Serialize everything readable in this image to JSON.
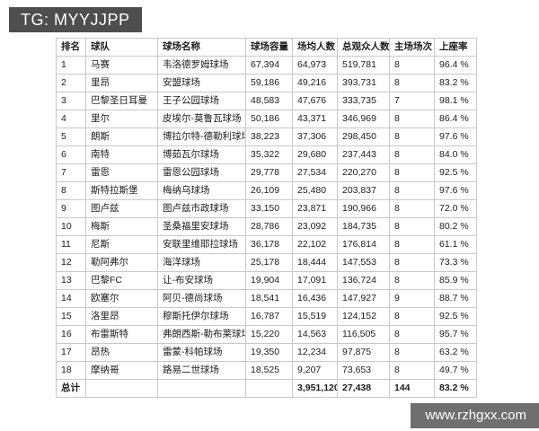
{
  "badges": {
    "tg": "TG: MYYJJPP",
    "watermark": "www.rzhgxx.com"
  },
  "colors": {
    "tg_badge_bg": "#4e4e4e",
    "watermark_bg": "#6f6f6f",
    "table_border": "#c9c9c9",
    "text": "#1c1c1c"
  },
  "table": {
    "headers": [
      "排名",
      "球队",
      "球场名称",
      "球场容量",
      "场均人数",
      "总观众人数",
      "主场场次",
      "上座率"
    ],
    "rows": [
      [
        "1",
        "马赛",
        "韦洛德罗姆球场",
        "67,394",
        "64,973",
        "519,781",
        "8",
        "96.4 %"
      ],
      [
        "2",
        "里昂",
        "安盟球场",
        "59,186",
        "49,216",
        "393,731",
        "8",
        "83.2 %"
      ],
      [
        "3",
        "巴黎圣日耳曼",
        "王子公园球场",
        "48,583",
        "47,676",
        "333,735",
        "7",
        "98.1 %"
      ],
      [
        "4",
        "里尔",
        "皮埃尔-莫鲁瓦球场",
        "50,186",
        "43,371",
        "346,969",
        "8",
        "86.4 %"
      ],
      [
        "5",
        "朗斯",
        "博拉尔特-德勒利球场",
        "38,223",
        "37,306",
        "298,450",
        "8",
        "97.6 %"
      ],
      [
        "6",
        "南特",
        "博茹瓦尔球场",
        "35,322",
        "29,680",
        "237,443",
        "8",
        "84.0 %"
      ],
      [
        "7",
        "雷恩",
        "雷恩公园球场",
        "29,778",
        "27,534",
        "220,270",
        "8",
        "92.5 %"
      ],
      [
        "8",
        "斯特拉斯堡",
        "梅纳乌球场",
        "26,109",
        "25,480",
        "203,837",
        "8",
        "97.6 %"
      ],
      [
        "9",
        "图卢兹",
        "图卢兹市政球场",
        "33,150",
        "23,871",
        "190,966",
        "8",
        "72.0 %"
      ],
      [
        "10",
        "梅斯",
        "圣桑福里安球场",
        "28,786",
        "23,092",
        "184,735",
        "8",
        "80.2 %"
      ],
      [
        "11",
        "尼斯",
        "安联里维耶拉球场",
        "36,178",
        "22,102",
        "176,814",
        "8",
        "61.1 %"
      ],
      [
        "12",
        "勒阿弗尔",
        "海洋球场",
        "25,178",
        "18,444",
        "147,553",
        "8",
        "73.3 %"
      ],
      [
        "13",
        "巴黎FC",
        "让-布安球场",
        "19,904",
        "17,091",
        "136,724",
        "8",
        "85.9 %"
      ],
      [
        "14",
        "欧塞尔",
        "阿贝-德尚球场",
        "18,541",
        "16,436",
        "147,927",
        "9",
        "88.7 %"
      ],
      [
        "15",
        "洛里昂",
        "穆斯托伊尔球场",
        "16,787",
        "15,519",
        "124,152",
        "8",
        "92.5 %"
      ],
      [
        "16",
        "布雷斯特",
        "弗朗西斯-勒布莱球场",
        "15,220",
        "14,563",
        "116,505",
        "8",
        "95.7 %"
      ],
      [
        "17",
        "昂热",
        "雷蒙-科帕球场",
        "19,350",
        "12,234",
        "97,875",
        "8",
        "63.2 %"
      ],
      [
        "18",
        "摩纳哥",
        "路易二世球场",
        "18,525",
        "9,207",
        "73,653",
        "8",
        "49.7 %"
      ]
    ],
    "total_row": [
      "总计",
      "",
      "",
      "",
      "3,951,120",
      "27,438",
      "144",
      "83.2 %"
    ]
  }
}
